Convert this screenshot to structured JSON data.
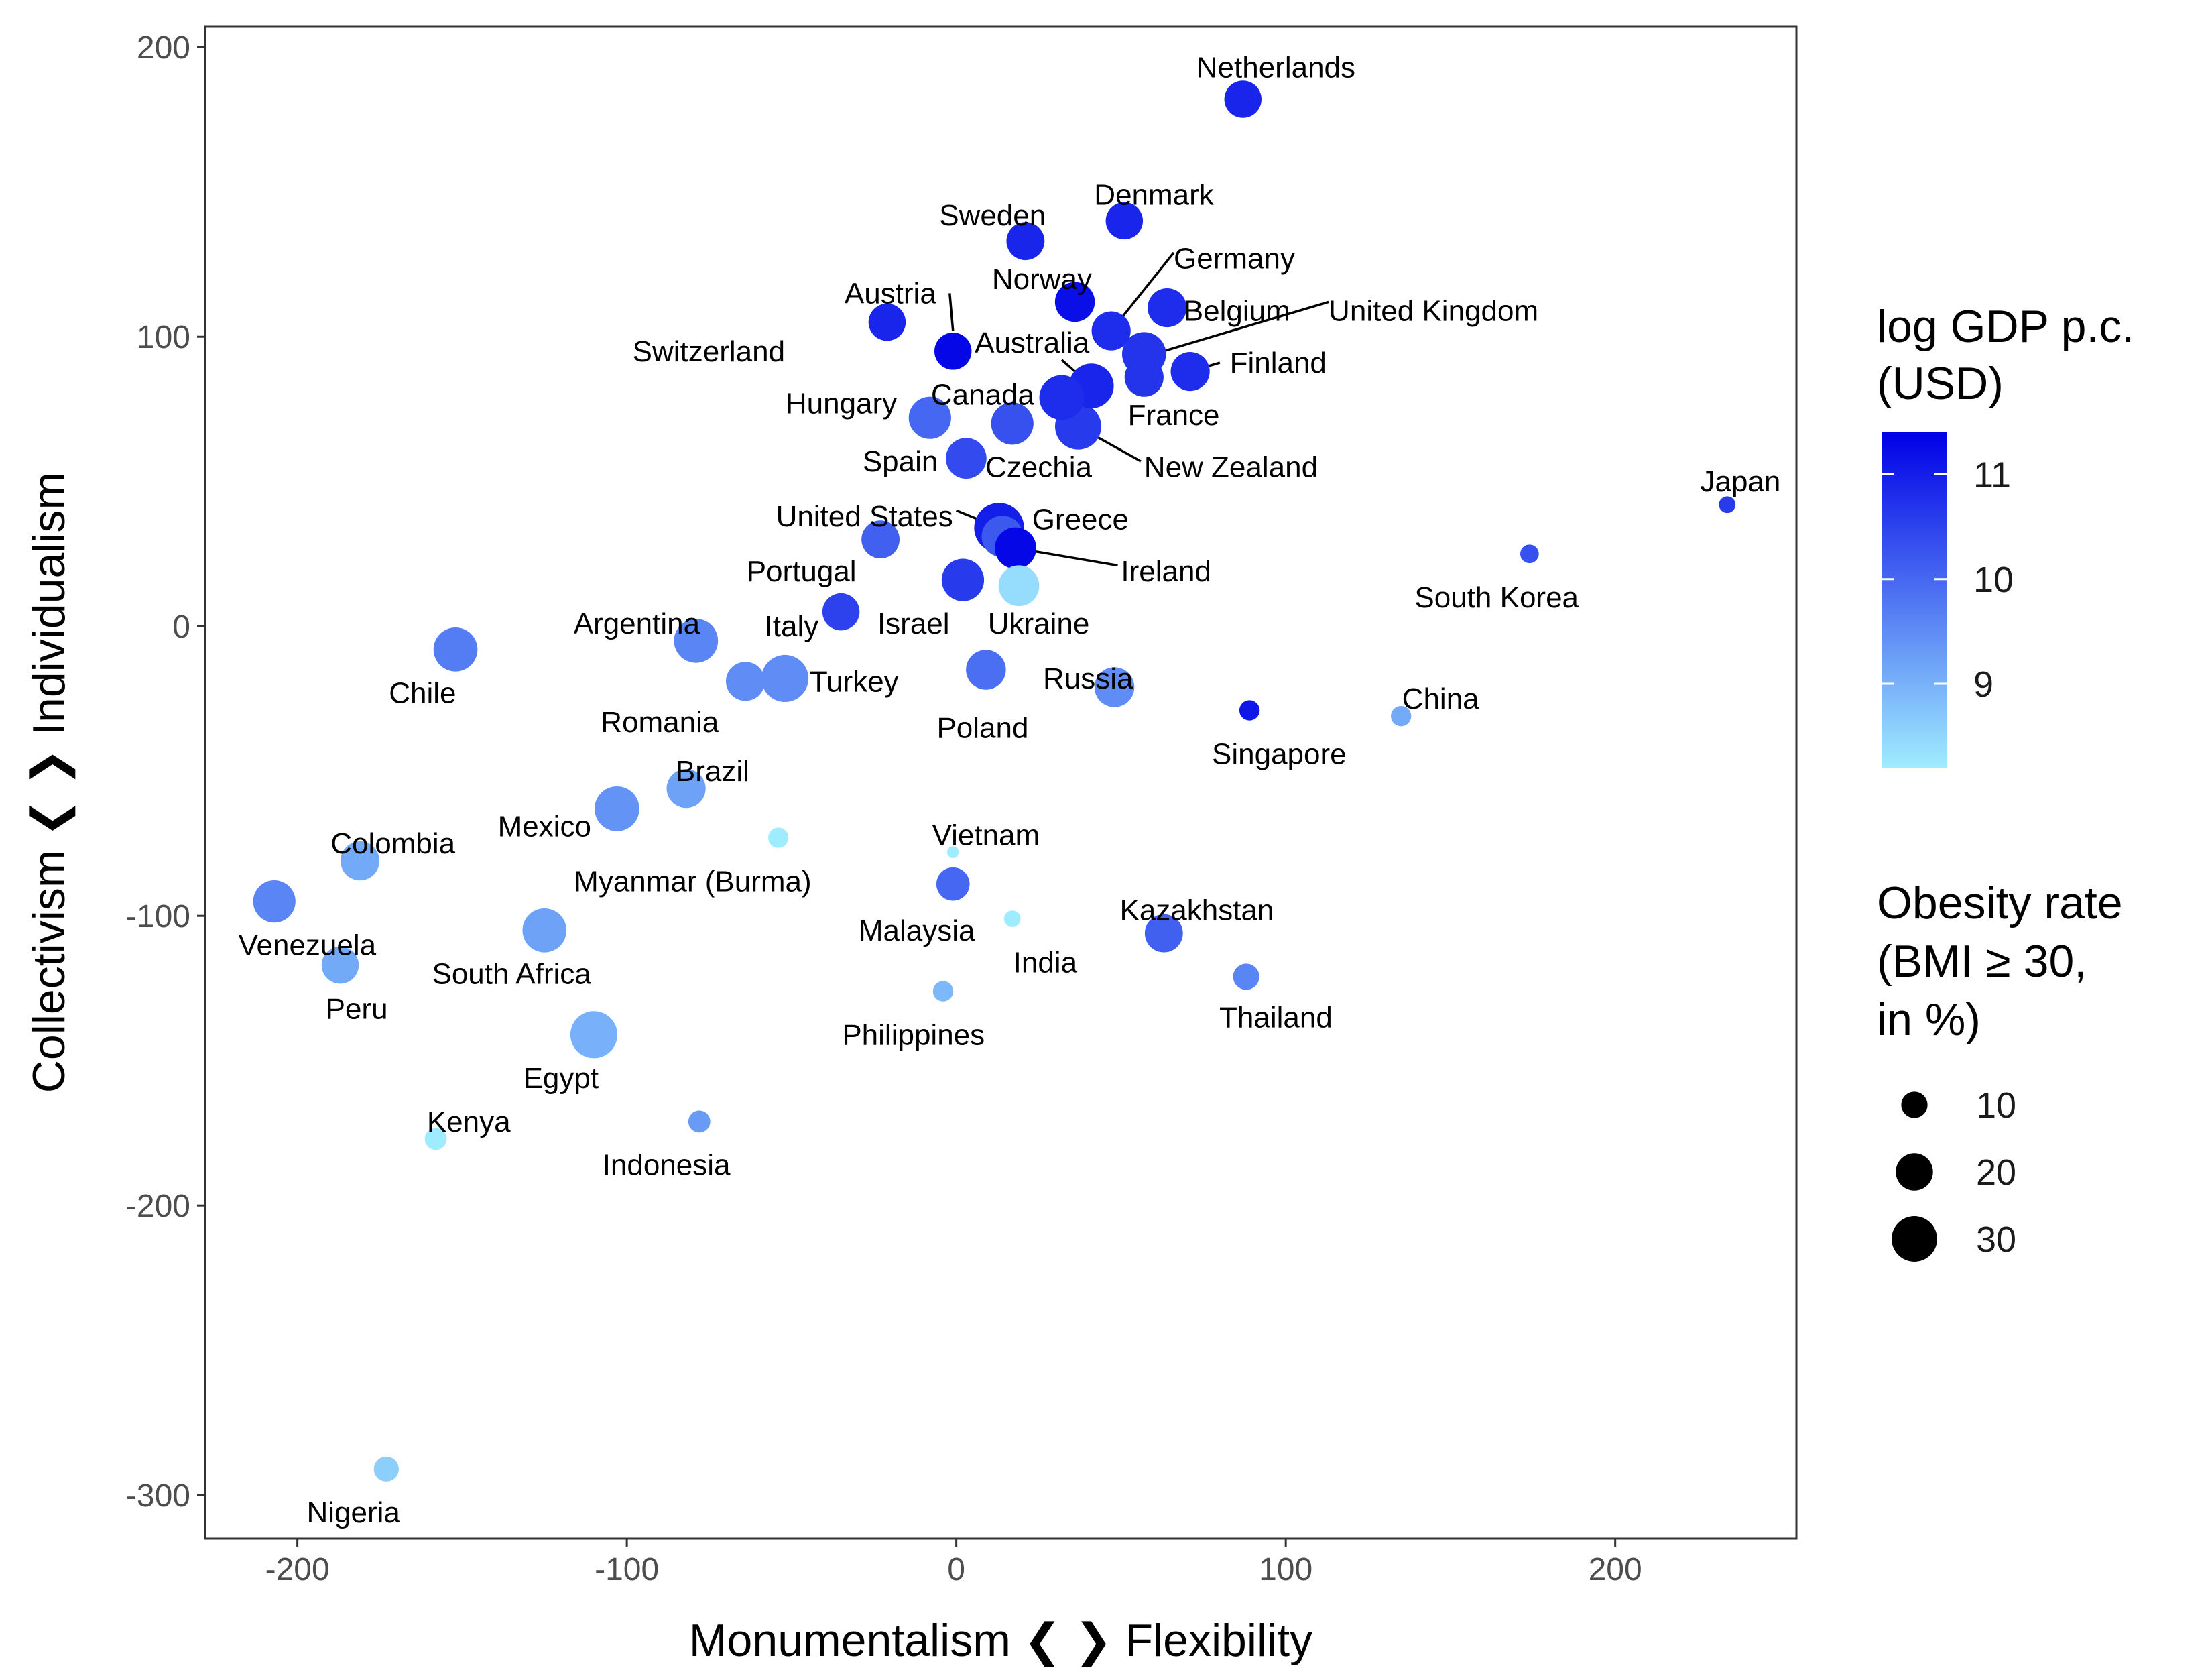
{
  "chart_data": {
    "type": "scatter",
    "xlabel": "Monumentalism ❮ ❯ Flexibility",
    "ylabel": "Collectivism ❮ ❯ Individualism",
    "xlim": [
      -228,
      255
    ],
    "ylim": [
      -315,
      207
    ],
    "xticks": [
      -200,
      -100,
      0,
      100,
      200
    ],
    "yticks": [
      -300,
      -200,
      -100,
      0,
      100,
      200
    ],
    "grid": false,
    "color_legend": {
      "title_line1": "log GDP p.c.",
      "title_line2": "(USD)",
      "min": 8.2,
      "max": 11.4,
      "low_color": "#a0ecff",
      "high_color": "#0000e6",
      "ticks": [
        {
          "value": 9,
          "label": "9"
        },
        {
          "value": 10,
          "label": "10"
        },
        {
          "value": 11,
          "label": "11"
        }
      ]
    },
    "size_legend": {
      "title_line1": "Obesity rate",
      "title_line2": "(BMI ≥ 30,",
      "title_line3": "in %)",
      "entries": [
        {
          "value": 10,
          "label": "10"
        },
        {
          "value": 20,
          "label": "20"
        },
        {
          "value": 30,
          "label": "30"
        }
      ]
    },
    "points": [
      {
        "name": "Netherlands",
        "x": 87,
        "y": 182,
        "gdp": 10.9,
        "obesity": 20
      },
      {
        "name": "Denmark",
        "x": 51,
        "y": 140,
        "gdp": 10.9,
        "obesity": 20
      },
      {
        "name": "Sweden",
        "x": 21,
        "y": 133,
        "gdp": 10.9,
        "obesity": 21
      },
      {
        "name": "Germany",
        "x": 47,
        "y": 102,
        "gdp": 10.8,
        "obesity": 22
      },
      {
        "name": "Norway",
        "x": 36,
        "y": 112,
        "gdp": 11.2,
        "obesity": 23
      },
      {
        "name": "Belgium",
        "x": 64,
        "y": 110,
        "gdp": 10.8,
        "obesity": 22
      },
      {
        "name": "United Kingdom",
        "x": 57,
        "y": 94,
        "gdp": 10.7,
        "obesity": 28
      },
      {
        "name": "Austria",
        "x": -21,
        "y": 105,
        "gdp": 10.9,
        "obesity": 20
      },
      {
        "name": "Switzerland",
        "x": -1,
        "y": 95,
        "gdp": 11.3,
        "obesity": 20
      },
      {
        "name": "Australia",
        "x": 41,
        "y": 83,
        "gdp": 10.9,
        "obesity": 29
      },
      {
        "name": "Finland",
        "x": 71,
        "y": 88,
        "gdp": 10.8,
        "obesity": 22
      },
      {
        "name": "France",
        "x": 57,
        "y": 86,
        "gdp": 10.7,
        "obesity": 22
      },
      {
        "name": "Canada",
        "x": 32,
        "y": 79,
        "gdp": 10.8,
        "obesity": 29
      },
      {
        "name": "Hungary",
        "x": -8,
        "y": 72,
        "gdp": 10.0,
        "obesity": 26
      },
      {
        "name": "Czechia",
        "x": 17,
        "y": 70,
        "gdp": 10.3,
        "obesity": 26
      },
      {
        "name": "New Zealand",
        "x": 37,
        "y": 69,
        "gdp": 10.6,
        "obesity": 31
      },
      {
        "name": "Spain",
        "x": 3,
        "y": 58,
        "gdp": 10.4,
        "obesity": 24
      },
      {
        "name": "United States",
        "x": 13,
        "y": 34,
        "gdp": 11.0,
        "obesity": 36
      },
      {
        "name": "Greece",
        "x": 14,
        "y": 31,
        "gdp": 10.2,
        "obesity": 25
      },
      {
        "name": "Ireland",
        "x": 18,
        "y": 27,
        "gdp": 11.3,
        "obesity": 25
      },
      {
        "name": "Portugal",
        "x": -23,
        "y": 30,
        "gdp": 10.1,
        "obesity": 21
      },
      {
        "name": "Israel",
        "x": 2,
        "y": 16,
        "gdp": 10.6,
        "obesity": 26
      },
      {
        "name": "Ukraine",
        "x": 19,
        "y": 14,
        "gdp": 8.4,
        "obesity": 24
      },
      {
        "name": "Italy",
        "x": -35,
        "y": 5,
        "gdp": 10.5,
        "obesity": 20
      },
      {
        "name": "Argentina",
        "x": -79,
        "y": -5,
        "gdp": 9.6,
        "obesity": 28
      },
      {
        "name": "Chile",
        "x": -152,
        "y": -8,
        "gdp": 9.7,
        "obesity": 28
      },
      {
        "name": "Turkey",
        "x": -52,
        "y": -18,
        "gdp": 9.5,
        "obesity": 32
      },
      {
        "name": "Romania",
        "x": -64,
        "y": -19,
        "gdp": 9.5,
        "obesity": 22
      },
      {
        "name": "Poland",
        "x": 9,
        "y": -15,
        "gdp": 9.9,
        "obesity": 23
      },
      {
        "name": "Russia",
        "x": 48,
        "y": -21,
        "gdp": 9.5,
        "obesity": 23
      },
      {
        "name": "South Korea",
        "x": 174,
        "y": 25,
        "gdp": 10.3,
        "obesity": 5
      },
      {
        "name": "Japan",
        "x": 234,
        "y": 42,
        "gdp": 10.6,
        "obesity": 4
      },
      {
        "name": "Singapore",
        "x": 89,
        "y": -29,
        "gdp": 11.1,
        "obesity": 6
      },
      {
        "name": "China",
        "x": 135,
        "y": -31,
        "gdp": 9.1,
        "obesity": 6
      },
      {
        "name": "Brazil",
        "x": -82,
        "y": -56,
        "gdp": 9.2,
        "obesity": 22
      },
      {
        "name": "Mexico",
        "x": -103,
        "y": -63,
        "gdp": 9.4,
        "obesity": 29
      },
      {
        "name": "Myanmar (Burma)",
        "x": -54,
        "y": -73,
        "gdp": 7.3,
        "obesity": 6
      },
      {
        "name": "Vietnam",
        "x": -1,
        "y": -78,
        "gdp": 7.8,
        "obesity": 2
      },
      {
        "name": "Malaysia",
        "x": -1,
        "y": -89,
        "gdp": 10.0,
        "obesity": 16
      },
      {
        "name": "India",
        "x": 17,
        "y": -101,
        "gdp": 7.4,
        "obesity": 4
      },
      {
        "name": "Kazakhstan",
        "x": 63,
        "y": -106,
        "gdp": 10.1,
        "obesity": 21
      },
      {
        "name": "Thailand",
        "x": 88,
        "y": -121,
        "gdp": 9.6,
        "obesity": 10
      },
      {
        "name": "Colombia",
        "x": -181,
        "y": -81,
        "gdp": 9.1,
        "obesity": 22
      },
      {
        "name": "Venezuela",
        "x": -207,
        "y": -95,
        "gdp": 9.6,
        "obesity": 26
      },
      {
        "name": "South Africa",
        "x": -125,
        "y": -105,
        "gdp": 9.2,
        "obesity": 28
      },
      {
        "name": "Peru",
        "x": -187,
        "y": -117,
        "gdp": 9.1,
        "obesity": 20
      },
      {
        "name": "Philippines",
        "x": -4,
        "y": -126,
        "gdp": 8.9,
        "obesity": 6
      },
      {
        "name": "Egypt",
        "x": -110,
        "y": -141,
        "gdp": 9.0,
        "obesity": 32
      },
      {
        "name": "Kenya",
        "x": -158,
        "y": -177,
        "gdp": 7.6,
        "obesity": 7
      },
      {
        "name": "Indonesia",
        "x": -78,
        "y": -171,
        "gdp": 9.3,
        "obesity": 7
      },
      {
        "name": "Nigeria",
        "x": -173,
        "y": -291,
        "gdp": 8.6,
        "obesity": 9
      }
    ],
    "labels": [
      {
        "text": "Netherlands",
        "x": 97,
        "y": 193,
        "anchor": "middle"
      },
      {
        "text": "Denmark",
        "x": 60,
        "y": 149,
        "anchor": "middle"
      },
      {
        "text": "Sweden",
        "x": 11,
        "y": 142,
        "anchor": "middle"
      },
      {
        "text": "Germany",
        "x": 66,
        "y": 127,
        "anchor": "start"
      },
      {
        "text": "Norway",
        "x": 26,
        "y": 120,
        "anchor": "middle"
      },
      {
        "text": "Belgium",
        "x": 69,
        "y": 109,
        "anchor": "start"
      },
      {
        "text": "United Kingdom",
        "x": 113,
        "y": 109,
        "anchor": "start"
      },
      {
        "text": "Austria",
        "x": -20,
        "y": 115,
        "anchor": "middle"
      },
      {
        "text": "Switzerland",
        "x": -52,
        "y": 95,
        "anchor": "end"
      },
      {
        "text": "Australia",
        "x": 23,
        "y": 98,
        "anchor": "middle"
      },
      {
        "text": "Finland",
        "x": 83,
        "y": 91,
        "anchor": "start"
      },
      {
        "text": "France",
        "x": 66,
        "y": 73,
        "anchor": "middle"
      },
      {
        "text": "Canada",
        "x": 8,
        "y": 80,
        "anchor": "middle"
      },
      {
        "text": "Hungary",
        "x": -18,
        "y": 77,
        "anchor": "end"
      },
      {
        "text": "Czechia",
        "x": 25,
        "y": 55,
        "anchor": "middle"
      },
      {
        "text": "New Zealand",
        "x": 57,
        "y": 55,
        "anchor": "start"
      },
      {
        "text": "Spain",
        "x": -17,
        "y": 57,
        "anchor": "middle"
      },
      {
        "text": "United States",
        "x": -1,
        "y": 38,
        "anchor": "end"
      },
      {
        "text": "Greece",
        "x": 23,
        "y": 37,
        "anchor": "start"
      },
      {
        "text": "Ireland",
        "x": 50,
        "y": 19,
        "anchor": "start"
      },
      {
        "text": "Portugal",
        "x": -47,
        "y": 19,
        "anchor": "middle"
      },
      {
        "text": "Israel",
        "x": -13,
        "y": 1,
        "anchor": "middle"
      },
      {
        "text": "Ukraine",
        "x": 25,
        "y": 1,
        "anchor": "middle"
      },
      {
        "text": "Italy",
        "x": -50,
        "y": 0,
        "anchor": "middle"
      },
      {
        "text": "Argentina",
        "x": -97,
        "y": 1,
        "anchor": "middle"
      },
      {
        "text": "Chile",
        "x": -162,
        "y": -23,
        "anchor": "middle"
      },
      {
        "text": "Turkey",
        "x": -31,
        "y": -19,
        "anchor": "middle"
      },
      {
        "text": "Romania",
        "x": -90,
        "y": -33,
        "anchor": "middle"
      },
      {
        "text": "Poland",
        "x": 8,
        "y": -35,
        "anchor": "middle"
      },
      {
        "text": "Russia",
        "x": 40,
        "y": -18,
        "anchor": "middle"
      },
      {
        "text": "South Korea",
        "x": 164,
        "y": 10,
        "anchor": "middle"
      },
      {
        "text": "Japan",
        "x": 238,
        "y": 50,
        "anchor": "middle"
      },
      {
        "text": "Singapore",
        "x": 98,
        "y": -44,
        "anchor": "middle"
      },
      {
        "text": "China",
        "x": 147,
        "y": -25,
        "anchor": "middle"
      },
      {
        "text": "Brazil",
        "x": -74,
        "y": -50,
        "anchor": "middle"
      },
      {
        "text": "Mexico",
        "x": -125,
        "y": -69,
        "anchor": "middle"
      },
      {
        "text": "Myanmar (Burma)",
        "x": -80,
        "y": -88,
        "anchor": "middle"
      },
      {
        "text": "Vietnam",
        "x": 9,
        "y": -72,
        "anchor": "middle"
      },
      {
        "text": "Malaysia",
        "x": -12,
        "y": -105,
        "anchor": "middle"
      },
      {
        "text": "India",
        "x": 27,
        "y": -116,
        "anchor": "middle"
      },
      {
        "text": "Kazakhstan",
        "x": 73,
        "y": -98,
        "anchor": "middle"
      },
      {
        "text": "Thailand",
        "x": 97,
        "y": -135,
        "anchor": "middle"
      },
      {
        "text": "Colombia",
        "x": -171,
        "y": -75,
        "anchor": "middle"
      },
      {
        "text": "Venezuela",
        "x": -197,
        "y": -110,
        "anchor": "middle"
      },
      {
        "text": "South Africa",
        "x": -135,
        "y": -120,
        "anchor": "middle"
      },
      {
        "text": "Peru",
        "x": -182,
        "y": -132,
        "anchor": "middle"
      },
      {
        "text": "Philippines",
        "x": -13,
        "y": -141,
        "anchor": "middle"
      },
      {
        "text": "Egypt",
        "x": -120,
        "y": -156,
        "anchor": "middle"
      },
      {
        "text": "Kenya",
        "x": -148,
        "y": -171,
        "anchor": "middle"
      },
      {
        "text": "Indonesia",
        "x": -88,
        "y": -186,
        "anchor": "middle"
      },
      {
        "text": "Nigeria",
        "x": -183,
        "y": -306,
        "anchor": "middle"
      }
    ],
    "leader_lines": [
      {
        "from": [
          -2,
          115
        ],
        "to": [
          -1,
          102
        ]
      },
      {
        "from": [
          66,
          129
        ],
        "to": [
          47,
          102
        ]
      },
      {
        "from": [
          113,
          112
        ],
        "to": [
          57,
          93
        ]
      },
      {
        "from": [
          32,
          92
        ],
        "to": [
          41,
          83
        ]
      },
      {
        "from": [
          80,
          91
        ],
        "to": [
          71,
          88
        ]
      },
      {
        "from": [
          56,
          57
        ],
        "to": [
          37,
          69
        ]
      },
      {
        "from": [
          0,
          40
        ],
        "to": [
          13,
          34
        ]
      },
      {
        "from": [
          49,
          21
        ],
        "to": [
          18,
          27
        ]
      }
    ]
  }
}
